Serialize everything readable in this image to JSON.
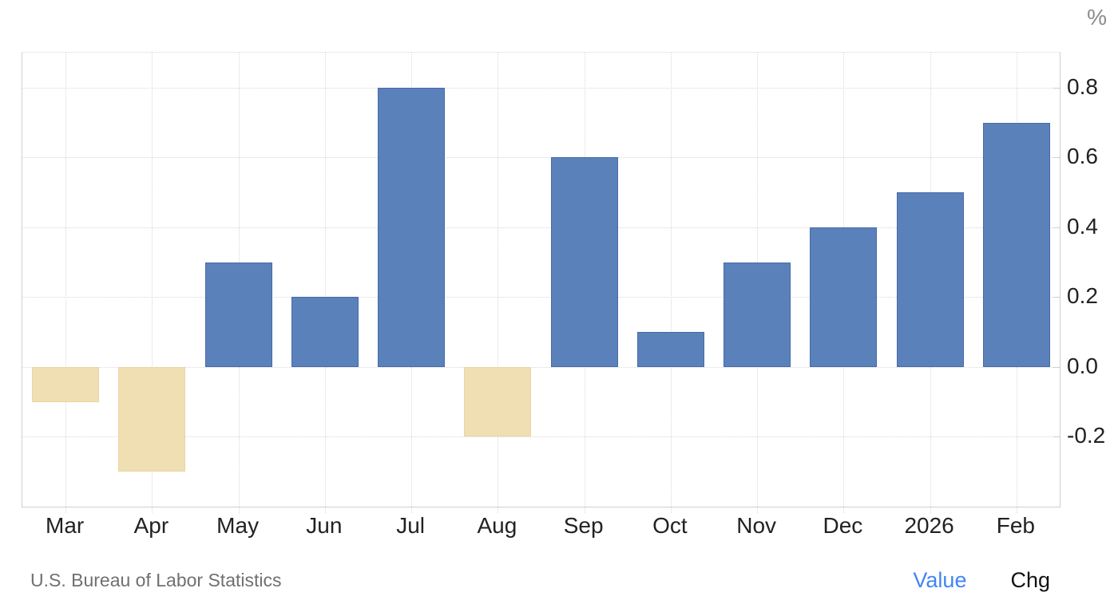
{
  "footer": {
    "source": "U.S. Bureau of Labor Statistics",
    "value_label": "Value",
    "chg_label": "Chg"
  },
  "colors": {
    "positive_bar": "#5b81ba",
    "positive_bar_border": "#466ba6",
    "negative_bar": "#f0dfb2",
    "negative_bar_border": "#e9d5a4",
    "grid": "#d8d8d8",
    "axis": "#cfcfcf",
    "tick_label": "#222222",
    "unit_label": "#8a8a8a",
    "source_text": "#707070",
    "value_link": "#4285f4",
    "chg_text": "#111111"
  },
  "chart_data": {
    "type": "bar",
    "categories": [
      "Mar",
      "Apr",
      "May",
      "Jun",
      "Jul",
      "Aug",
      "Sep",
      "Oct",
      "Nov",
      "Dec",
      "2026",
      "Feb"
    ],
    "values": [
      -0.1,
      -0.3,
      0.3,
      0.2,
      0.8,
      -0.2,
      0.6,
      0.1,
      0.3,
      0.4,
      0.5,
      0.7
    ],
    "title": "",
    "xlabel": "",
    "ylabel": "%",
    "ylim": [
      -0.4,
      0.9
    ],
    "yticks": [
      0.8,
      0.6,
      0.4,
      0.2,
      0.0,
      -0.2
    ],
    "ytick_labels": [
      "0.8",
      "0.6",
      "0.4",
      "0.2",
      "0.0",
      "-0.2"
    ],
    "grid": true,
    "legend_position": "bottom-right"
  }
}
